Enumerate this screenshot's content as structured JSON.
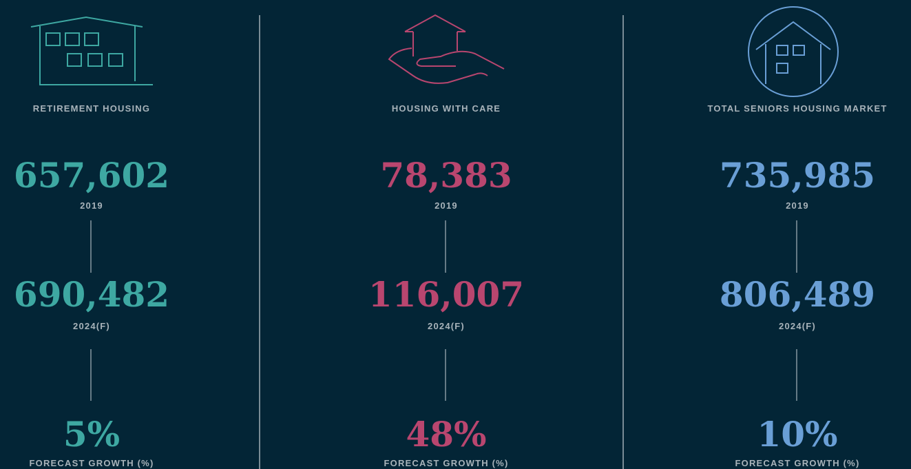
{
  "columns": [
    {
      "label": "RETIREMENT HOUSING",
      "color": "#3ea8a2",
      "value_1": "657,602",
      "period_1": "2019",
      "value_2": "690,482",
      "period_2": "2024(F)",
      "growth": "5%",
      "growth_label": "FORECAST GROWTH (%)"
    },
    {
      "label": "HOUSING WITH CARE",
      "color": "#b9466f",
      "value_1": "78,383",
      "period_1": "2019",
      "value_2": "116,007",
      "period_2": "2024(F)",
      "growth": "48%",
      "growth_label": "FORECAST GROWTH (%)"
    },
    {
      "label": "TOTAL SENIORS HOUSING MARKET",
      "color": "#6a9fd6",
      "value_1": "735,985",
      "period_1": "2019",
      "value_2": "806,489",
      "period_2": "2024(F)",
      "growth": "10%",
      "growth_label": "FORECAST GROWTH (%)"
    }
  ]
}
